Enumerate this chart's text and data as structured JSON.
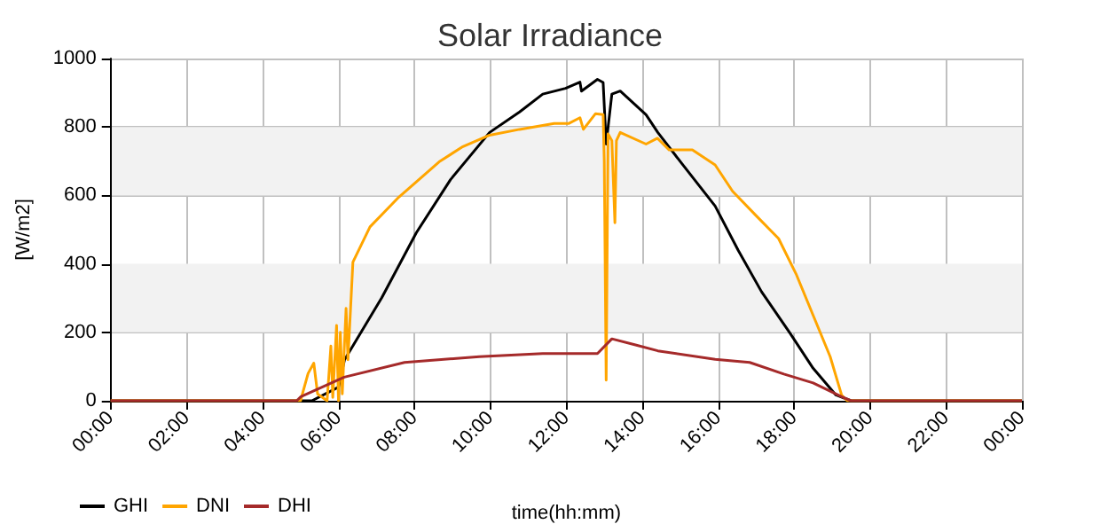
{
  "chart_data": {
    "type": "line",
    "title": "Solar Irradiance",
    "xlabel": "time(hh:mm)",
    "ylabel": "[W/m2]",
    "xlim": [
      0,
      24
    ],
    "xticks": [
      {
        "value": 0,
        "label": "00:00"
      },
      {
        "value": 2,
        "label": "02:00"
      },
      {
        "value": 4,
        "label": "04:00"
      },
      {
        "value": 6,
        "label": "06:00"
      },
      {
        "value": 8,
        "label": "08:00"
      },
      {
        "value": 10,
        "label": "10:00"
      },
      {
        "value": 12,
        "label": "12:00"
      },
      {
        "value": 14,
        "label": "14:00"
      },
      {
        "value": 16,
        "label": "16:00"
      },
      {
        "value": 18,
        "label": "18:00"
      },
      {
        "value": 20,
        "label": "20:00"
      },
      {
        "value": 22,
        "label": "22:00"
      },
      {
        "value": 24,
        "label": "00:00"
      }
    ],
    "ylim": [
      0,
      1000
    ],
    "yticks": [
      0,
      200,
      400,
      600,
      800,
      1000
    ],
    "grid": true,
    "legend": "bottom left",
    "marker": "none",
    "line_style": "solid",
    "bands": [
      {
        "axis": "y",
        "from": 200,
        "to": 400,
        "color": "#f2f2f2"
      },
      {
        "axis": "y",
        "from": 600,
        "to": 800,
        "color": "#f2f2f2"
      }
    ],
    "series": [
      {
        "name": "GHI",
        "color": "#000000",
        "x": [
          0,
          5.3,
          6.0,
          6.16,
          7.14,
          8.05,
          8.95,
          9.98,
          10.77,
          11.38,
          11.98,
          12.36,
          12.4,
          12.82,
          12.97,
          13.05,
          13.2,
          13.42,
          14.1,
          14.41,
          15.01,
          15.92,
          16.53,
          17.14,
          17.89,
          18.5,
          19.1,
          19.5,
          24
        ],
        "values": [
          0,
          0,
          40,
          120,
          301,
          491,
          646,
          784,
          844,
          896,
          913,
          931,
          905,
          939,
          930,
          750,
          896,
          905,
          836,
          784,
          698,
          569,
          439,
          319,
          198,
          95,
          17,
          0,
          0
        ]
      },
      {
        "name": "DNI",
        "color": "#ffa500",
        "x": [
          0,
          5.0,
          5.2,
          5.35,
          5.45,
          5.7,
          5.8,
          5.85,
          5.95,
          6.0,
          6.05,
          6.1,
          6.2,
          6.25,
          6.38,
          6.83,
          7.59,
          8.65,
          9.25,
          9.98,
          10.77,
          11.68,
          12.06,
          12.36,
          12.45,
          12.77,
          12.97,
          13.0,
          13.05,
          13.1,
          13.2,
          13.28,
          13.32,
          13.42,
          14.1,
          14.4,
          14.71,
          15.32,
          15.92,
          16.38,
          16.98,
          17.59,
          18.05,
          18.5,
          18.95,
          19.25,
          19.4,
          24
        ],
        "values": [
          0,
          0,
          80,
          110,
          20,
          0,
          160,
          10,
          220,
          0,
          200,
          20,
          270,
          120,
          405,
          508,
          595,
          698,
          741,
          776,
          793,
          810,
          810,
          827,
          793,
          839,
          836,
          700,
          60,
          780,
          760,
          520,
          760,
          784,
          750,
          767,
          733,
          733,
          689,
          612,
          543,
          474,
          371,
          250,
          129,
          17,
          0,
          0
        ]
      },
      {
        "name": "DHI",
        "color": "#a52a2a",
        "x": [
          0,
          4.9,
          5.01,
          6.15,
          7.74,
          9.71,
          11.38,
          12.82,
          13.2,
          13.8,
          14.41,
          15.92,
          16.83,
          17.73,
          18.5,
          19.25,
          19.5,
          24
        ],
        "values": [
          0,
          0,
          12,
          69,
          112,
          129,
          138,
          138,
          181,
          164,
          146,
          121,
          112,
          78,
          52,
          12,
          0,
          0
        ]
      }
    ]
  }
}
